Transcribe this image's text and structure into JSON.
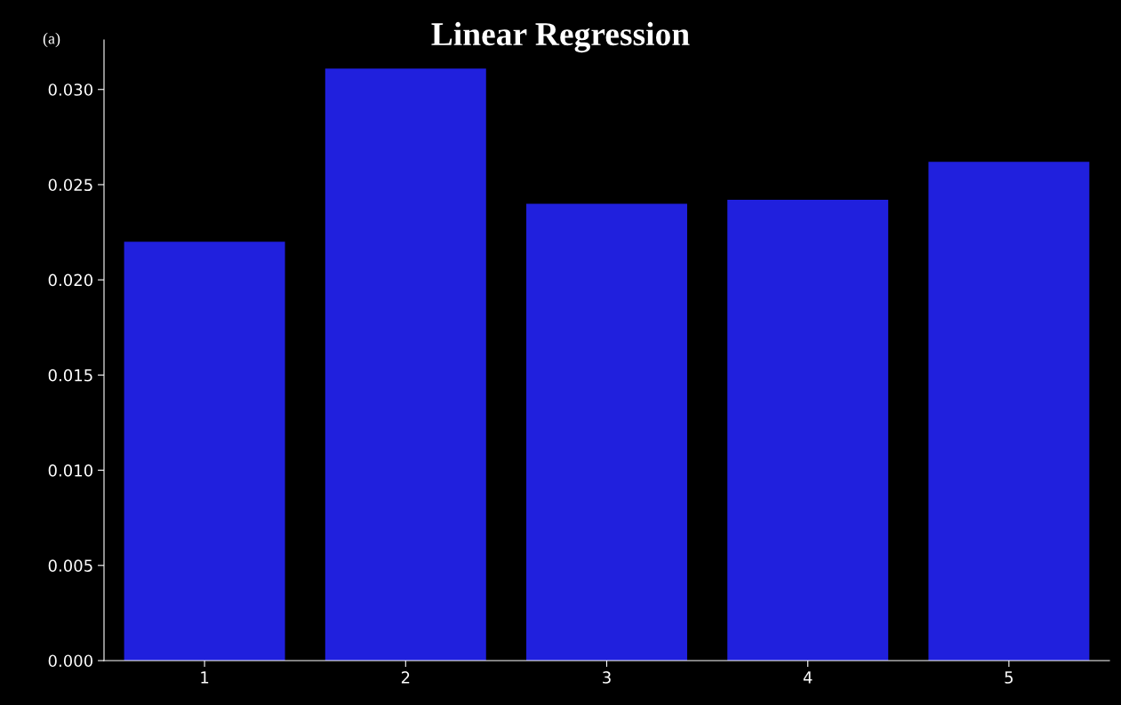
{
  "chart_data": {
    "type": "bar",
    "title": "Linear Regression",
    "annotations": [
      "(a)"
    ],
    "categories": [
      "1",
      "2",
      "3",
      "4",
      "5"
    ],
    "values": [
      0.022,
      0.0311,
      0.024,
      0.0242,
      0.0262
    ],
    "color": "#2020dd",
    "ylim": [
      0,
      0.0326
    ],
    "yticks": [
      {
        "value": 0,
        "label": "0.000"
      },
      {
        "value": 0.005,
        "label": "0.005"
      },
      {
        "value": 0.01,
        "label": "0.010"
      },
      {
        "value": 0.015,
        "label": "0.015"
      },
      {
        "value": 0.02,
        "label": "0.020"
      },
      {
        "value": 0.025,
        "label": "0.025"
      },
      {
        "value": 0.03,
        "label": "0.030"
      }
    ],
    "grid": false,
    "legend": false
  }
}
